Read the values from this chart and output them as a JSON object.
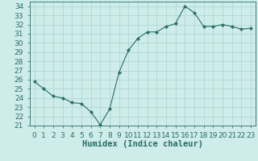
{
  "x": [
    0,
    1,
    2,
    3,
    4,
    5,
    6,
    7,
    8,
    9,
    10,
    11,
    12,
    13,
    14,
    15,
    16,
    17,
    18,
    19,
    20,
    21,
    22,
    23
  ],
  "y": [
    25.8,
    25.0,
    24.2,
    24.0,
    23.5,
    23.4,
    22.5,
    21.1,
    22.8,
    26.8,
    29.2,
    30.5,
    31.2,
    31.2,
    31.8,
    32.1,
    34.0,
    33.3,
    31.8,
    31.8,
    32.0,
    31.8,
    31.5,
    31.6
  ],
  "xlabel": "Humidex (Indice chaleur)",
  "xlim": [
    -0.5,
    23.5
  ],
  "ylim": [
    21,
    34.5
  ],
  "yticks": [
    21,
    22,
    23,
    24,
    25,
    26,
    27,
    28,
    29,
    30,
    31,
    32,
    33,
    34
  ],
  "xticks": [
    0,
    1,
    2,
    3,
    4,
    5,
    6,
    7,
    8,
    9,
    10,
    11,
    12,
    13,
    14,
    15,
    16,
    17,
    18,
    19,
    20,
    21,
    22,
    23
  ],
  "line_color": "#2a6e62",
  "marker": "D",
  "marker_size": 2.2,
  "bg_color": "#ceecea",
  "grid_color": "#a8d4d0",
  "tick_color": "#2a6e62",
  "label_color": "#2a6e62",
  "xlabel_fontsize": 7.5,
  "tick_fontsize": 6.5
}
